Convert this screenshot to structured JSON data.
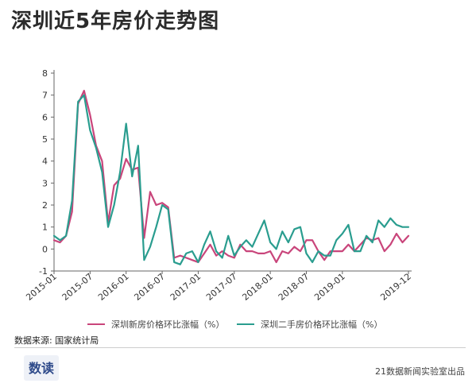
{
  "title": "深圳近5年房价走势图",
  "legend": {
    "new_label": "深圳新房价格环比涨幅（%）",
    "second_label": "深圳二手房价格环比涨幅（%）"
  },
  "source": "数据来源: 国家统计局",
  "credit": "21数据新闻实验室出品",
  "logo_text": "数读",
  "chart_data": {
    "type": "line",
    "title": "深圳近5年房价走势图",
    "xlabel": "",
    "ylabel": "",
    "ylim": [
      -1,
      8
    ],
    "yticks": [
      -1,
      0,
      1,
      2,
      3,
      4,
      5,
      6,
      7,
      8
    ],
    "x_tick_labels": [
      "2015-01",
      "2015-07",
      "2016-01",
      "2016-07",
      "2017-01",
      "2017-07",
      "2018-01",
      "2018-07",
      "2019-01",
      "2019-12"
    ],
    "x_tick_months": [
      0,
      6,
      12,
      18,
      24,
      30,
      36,
      42,
      48,
      59
    ],
    "grid": false,
    "legend_position": "bottom",
    "colors": {
      "new": "#c9457b",
      "second": "#2a9d8f"
    },
    "x": [
      "2015-01",
      "2015-02",
      "2015-03",
      "2015-04",
      "2015-05",
      "2015-06",
      "2015-07",
      "2015-08",
      "2015-09",
      "2015-10",
      "2015-11",
      "2015-12",
      "2016-01",
      "2016-02",
      "2016-03",
      "2016-04",
      "2016-05",
      "2016-06",
      "2016-07",
      "2016-08",
      "2016-09",
      "2016-10",
      "2016-11",
      "2016-12",
      "2017-01",
      "2017-02",
      "2017-03",
      "2017-04",
      "2017-05",
      "2017-06",
      "2017-07",
      "2017-08",
      "2017-09",
      "2017-10",
      "2017-11",
      "2017-12",
      "2018-01",
      "2018-02",
      "2018-03",
      "2018-04",
      "2018-05",
      "2018-06",
      "2018-07",
      "2018-08",
      "2018-09",
      "2018-10",
      "2018-11",
      "2018-12",
      "2019-01",
      "2019-02",
      "2019-03",
      "2019-04",
      "2019-05",
      "2019-06",
      "2019-07",
      "2019-08",
      "2019-09",
      "2019-10",
      "2019-11",
      "2019-12"
    ],
    "series": [
      {
        "name": "深圳新房价格环比涨幅（%）",
        "values": [
          0.4,
          0.3,
          0.6,
          1.7,
          6.6,
          7.2,
          6.1,
          4.7,
          4.0,
          1.2,
          2.9,
          3.2,
          4.1,
          3.6,
          3.7,
          0.5,
          2.6,
          2.0,
          2.1,
          1.9,
          -0.4,
          -0.3,
          -0.4,
          -0.5,
          -0.6,
          -0.2,
          0.2,
          -0.3,
          -0.1,
          -0.3,
          -0.4,
          0.2,
          -0.1,
          -0.1,
          -0.2,
          -0.2,
          -0.1,
          -0.6,
          -0.1,
          -0.2,
          0.1,
          -0.1,
          0.4,
          0.4,
          -0.1,
          -0.5,
          -0.1,
          -0.1,
          -0.1,
          0.2,
          -0.1,
          0.2,
          0.5,
          0.4,
          0.5,
          -0.1,
          0.2,
          0.7,
          0.3,
          0.6
        ]
      },
      {
        "name": "深圳二手房价格环比涨幅（%）",
        "values": [
          0.6,
          0.4,
          0.6,
          2.2,
          6.7,
          7.0,
          5.4,
          4.6,
          3.5,
          1.0,
          2.0,
          3.5,
          5.7,
          3.3,
          4.7,
          -0.5,
          0.1,
          1.0,
          2.0,
          1.8,
          -0.6,
          -0.7,
          -0.2,
          -0.1,
          -0.6,
          0.2,
          0.8,
          -0.1,
          -0.4,
          0.6,
          -0.3,
          0.1,
          0.4,
          0.1,
          0.7,
          1.3,
          0.3,
          0.0,
          0.8,
          0.3,
          0.9,
          1.0,
          -0.2,
          -0.6,
          -0.1,
          -0.3,
          -0.3,
          0.4,
          0.7,
          1.1,
          -0.1,
          -0.1,
          0.6,
          0.3,
          1.3,
          1.0,
          1.4,
          1.1,
          1.0,
          1.0
        ]
      }
    ]
  }
}
